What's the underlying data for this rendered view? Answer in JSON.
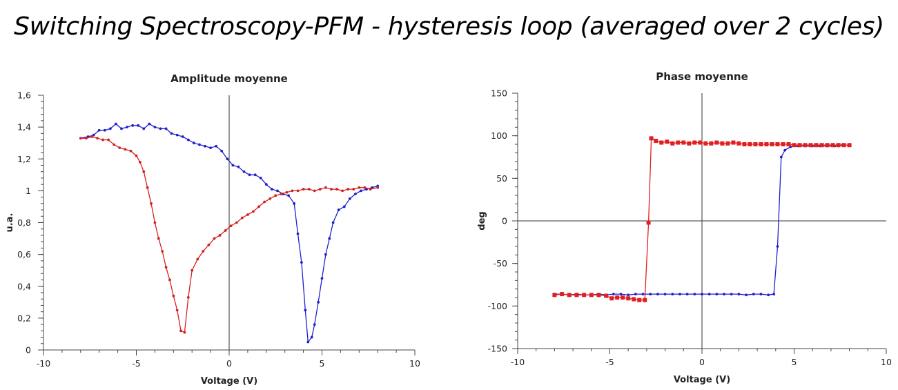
{
  "page": {
    "title": "Switching Spectroscopy-PFM - hysteresis loop (averaged over 2 cycles)"
  },
  "chart_data": [
    {
      "type": "line",
      "title": "Amplitude moyenne",
      "xlabel": "Voltage (V)",
      "ylabel": "u.a.",
      "xlim": [
        -10,
        10
      ],
      "ylim": [
        0,
        1.6
      ],
      "x_ticks": [
        -10,
        -5,
        0,
        5,
        10
      ],
      "x_tick_labels": [
        "-10",
        "-5",
        "0",
        "5",
        "10"
      ],
      "y_ticks": [
        0,
        0.2,
        0.4,
        0.6,
        0.8,
        1,
        1.2,
        1.4,
        1.6
      ],
      "y_tick_labels": [
        "0",
        "0,2",
        "0,4",
        "0,6",
        "0,8",
        "1",
        "1,2",
        "1,4",
        "1,6"
      ],
      "grid": false,
      "zero_lines": true,
      "series": [
        {
          "color": "#2020cc",
          "marker": "dot",
          "points": [
            [
              -8,
              1.33
            ],
            [
              -7.6,
              1.34
            ],
            [
              -7.3,
              1.35
            ],
            [
              -7.0,
              1.38
            ],
            [
              -6.7,
              1.38
            ],
            [
              -6.4,
              1.39
            ],
            [
              -6.1,
              1.42
            ],
            [
              -5.8,
              1.39
            ],
            [
              -5.5,
              1.4
            ],
            [
              -5.2,
              1.41
            ],
            [
              -4.9,
              1.41
            ],
            [
              -4.6,
              1.39
            ],
            [
              -4.3,
              1.42
            ],
            [
              -4.0,
              1.4
            ],
            [
              -3.7,
              1.39
            ],
            [
              -3.4,
              1.39
            ],
            [
              -3.1,
              1.36
            ],
            [
              -2.8,
              1.35
            ],
            [
              -2.5,
              1.34
            ],
            [
              -2.2,
              1.32
            ],
            [
              -1.9,
              1.3
            ],
            [
              -1.6,
              1.29
            ],
            [
              -1.3,
              1.28
            ],
            [
              -1.0,
              1.27
            ],
            [
              -0.7,
              1.28
            ],
            [
              -0.4,
              1.25
            ],
            [
              -0.1,
              1.2
            ],
            [
              0.2,
              1.16
            ],
            [
              0.5,
              1.15
            ],
            [
              0.8,
              1.12
            ],
            [
              1.1,
              1.1
            ],
            [
              1.4,
              1.1
            ],
            [
              1.7,
              1.08
            ],
            [
              2.0,
              1.04
            ],
            [
              2.3,
              1.01
            ],
            [
              2.6,
              1.0
            ],
            [
              2.9,
              0.98
            ],
            [
              3.2,
              0.97
            ],
            [
              3.5,
              0.92
            ],
            [
              3.7,
              0.73
            ],
            [
              3.9,
              0.55
            ],
            [
              4.1,
              0.25
            ],
            [
              4.25,
              0.05
            ],
            [
              4.45,
              0.08
            ],
            [
              4.6,
              0.16
            ],
            [
              4.8,
              0.3
            ],
            [
              5.0,
              0.45
            ],
            [
              5.2,
              0.6
            ],
            [
              5.4,
              0.7
            ],
            [
              5.6,
              0.8
            ],
            [
              5.9,
              0.88
            ],
            [
              6.2,
              0.9
            ],
            [
              6.5,
              0.95
            ],
            [
              6.8,
              0.98
            ],
            [
              7.1,
              1.0
            ],
            [
              7.4,
              1.01
            ],
            [
              7.7,
              1.02
            ],
            [
              8.0,
              1.03
            ]
          ]
        },
        {
          "color": "#d42020",
          "marker": "dot",
          "points": [
            [
              -8,
              1.33
            ],
            [
              -7.7,
              1.33
            ],
            [
              -7.4,
              1.34
            ],
            [
              -7.1,
              1.33
            ],
            [
              -6.8,
              1.32
            ],
            [
              -6.5,
              1.32
            ],
            [
              -6.2,
              1.29
            ],
            [
              -5.9,
              1.27
            ],
            [
              -5.6,
              1.26
            ],
            [
              -5.3,
              1.25
            ],
            [
              -5.0,
              1.22
            ],
            [
              -4.8,
              1.18
            ],
            [
              -4.6,
              1.12
            ],
            [
              -4.4,
              1.02
            ],
            [
              -4.2,
              0.92
            ],
            [
              -4.0,
              0.8
            ],
            [
              -3.8,
              0.7
            ],
            [
              -3.6,
              0.62
            ],
            [
              -3.4,
              0.52
            ],
            [
              -3.2,
              0.44
            ],
            [
              -3.0,
              0.34
            ],
            [
              -2.8,
              0.25
            ],
            [
              -2.6,
              0.12
            ],
            [
              -2.4,
              0.11
            ],
            [
              -2.2,
              0.33
            ],
            [
              -2.0,
              0.5
            ],
            [
              -1.7,
              0.57
            ],
            [
              -1.4,
              0.62
            ],
            [
              -1.1,
              0.66
            ],
            [
              -0.8,
              0.7
            ],
            [
              -0.5,
              0.72
            ],
            [
              -0.2,
              0.75
            ],
            [
              0.1,
              0.78
            ],
            [
              0.4,
              0.8
            ],
            [
              0.7,
              0.83
            ],
            [
              1.0,
              0.85
            ],
            [
              1.3,
              0.87
            ],
            [
              1.6,
              0.9
            ],
            [
              1.9,
              0.93
            ],
            [
              2.2,
              0.95
            ],
            [
              2.5,
              0.97
            ],
            [
              2.8,
              0.98
            ],
            [
              3.1,
              0.99
            ],
            [
              3.4,
              1.0
            ],
            [
              3.7,
              1.0
            ],
            [
              4.0,
              1.01
            ],
            [
              4.3,
              1.01
            ],
            [
              4.6,
              1.0
            ],
            [
              4.9,
              1.01
            ],
            [
              5.2,
              1.02
            ],
            [
              5.5,
              1.01
            ],
            [
              5.8,
              1.01
            ],
            [
              6.1,
              1.0
            ],
            [
              6.4,
              1.01
            ],
            [
              6.7,
              1.01
            ],
            [
              7.0,
              1.02
            ],
            [
              7.3,
              1.02
            ],
            [
              7.6,
              1.01
            ],
            [
              8.0,
              1.02
            ]
          ]
        }
      ]
    },
    {
      "type": "line",
      "title": "Phase moyenne",
      "xlabel": "Voltage (V)",
      "ylabel": "deg",
      "xlim": [
        -10,
        10
      ],
      "ylim": [
        -150,
        150
      ],
      "x_ticks": [
        -10,
        -5,
        0,
        5,
        10
      ],
      "x_tick_labels": [
        "-10",
        "-5",
        "0",
        "5",
        "10"
      ],
      "y_ticks": [
        -150,
        -100,
        -50,
        0,
        50,
        100,
        150
      ],
      "y_tick_labels": [
        "-150",
        "-100",
        "-50",
        "0",
        "50",
        "100",
        "150"
      ],
      "grid": false,
      "zero_lines": true,
      "series": [
        {
          "color": "#2020cc",
          "marker": "dot",
          "points": [
            [
              -8,
              -86
            ],
            [
              -7.6,
              -86
            ],
            [
              -7.2,
              -87
            ],
            [
              -6.8,
              -86
            ],
            [
              -6.4,
              -87
            ],
            [
              -6.0,
              -87
            ],
            [
              -5.6,
              -86
            ],
            [
              -5.2,
              -87
            ],
            [
              -4.8,
              -86
            ],
            [
              -4.4,
              -86
            ],
            [
              -4.0,
              -87
            ],
            [
              -3.6,
              -86
            ],
            [
              -3.2,
              -86
            ],
            [
              -2.8,
              -86
            ],
            [
              -2.4,
              -86
            ],
            [
              -2.0,
              -86
            ],
            [
              -1.6,
              -86
            ],
            [
              -1.2,
              -86
            ],
            [
              -0.8,
              -86
            ],
            [
              -0.4,
              -86
            ],
            [
              0.0,
              -86
            ],
            [
              0.4,
              -86
            ],
            [
              0.8,
              -86
            ],
            [
              1.2,
              -86
            ],
            [
              1.6,
              -86
            ],
            [
              2.0,
              -86
            ],
            [
              2.4,
              -87
            ],
            [
              2.8,
              -86
            ],
            [
              3.2,
              -86
            ],
            [
              3.6,
              -87
            ],
            [
              3.9,
              -86
            ],
            [
              4.1,
              -30
            ],
            [
              4.3,
              75
            ],
            [
              4.5,
              83
            ],
            [
              4.8,
              87
            ],
            [
              5.2,
              88
            ],
            [
              5.6,
              88
            ],
            [
              6.0,
              88
            ],
            [
              6.4,
              88
            ],
            [
              6.8,
              88
            ],
            [
              7.2,
              88
            ],
            [
              7.6,
              89
            ],
            [
              8.0,
              89
            ]
          ]
        },
        {
          "color": "#e02020",
          "marker": "square",
          "points": [
            [
              -8,
              -87
            ],
            [
              -7.6,
              -86
            ],
            [
              -7.2,
              -87
            ],
            [
              -6.8,
              -87
            ],
            [
              -6.4,
              -87
            ],
            [
              -6.0,
              -87
            ],
            [
              -5.6,
              -87
            ],
            [
              -5.2,
              -88
            ],
            [
              -4.9,
              -91
            ],
            [
              -4.6,
              -90
            ],
            [
              -4.3,
              -90
            ],
            [
              -4.0,
              -91
            ],
            [
              -3.7,
              -92
            ],
            [
              -3.4,
              -93
            ],
            [
              -3.1,
              -93
            ],
            [
              -2.9,
              -2
            ],
            [
              -2.75,
              97
            ],
            [
              -2.5,
              94
            ],
            [
              -2.2,
              92
            ],
            [
              -1.9,
              93
            ],
            [
              -1.6,
              91
            ],
            [
              -1.3,
              92
            ],
            [
              -1.0,
              92
            ],
            [
              -0.7,
              91
            ],
            [
              -0.4,
              92
            ],
            [
              -0.1,
              92
            ],
            [
              0.2,
              91
            ],
            [
              0.5,
              91
            ],
            [
              0.8,
              92
            ],
            [
              1.1,
              91
            ],
            [
              1.4,
              91
            ],
            [
              1.7,
              92
            ],
            [
              2.0,
              91
            ],
            [
              2.3,
              90
            ],
            [
              2.6,
              90
            ],
            [
              2.9,
              90
            ],
            [
              3.2,
              90
            ],
            [
              3.5,
              90
            ],
            [
              3.8,
              90
            ],
            [
              4.1,
              90
            ],
            [
              4.4,
              90
            ],
            [
              4.7,
              90
            ],
            [
              5.0,
              89
            ],
            [
              5.3,
              89
            ],
            [
              5.6,
              89
            ],
            [
              5.9,
              89
            ],
            [
              6.2,
              89
            ],
            [
              6.5,
              89
            ],
            [
              6.8,
              89
            ],
            [
              7.1,
              89
            ],
            [
              7.4,
              89
            ],
            [
              7.7,
              89
            ],
            [
              8.0,
              89
            ]
          ]
        }
      ]
    }
  ]
}
